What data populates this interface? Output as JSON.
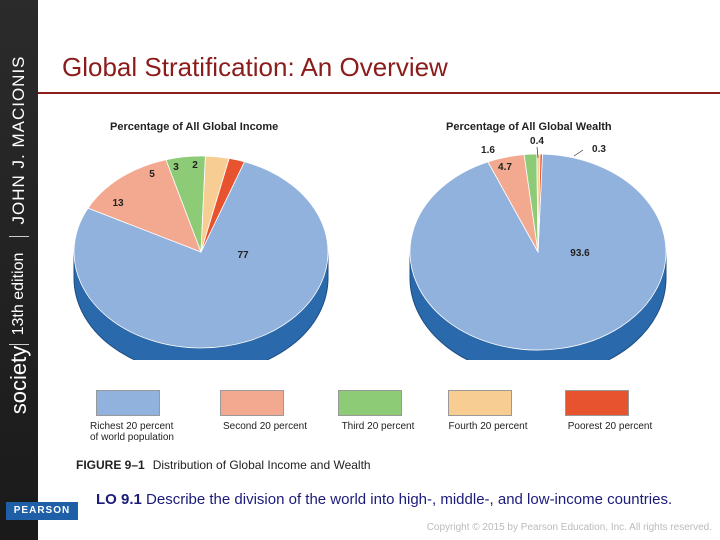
{
  "sidebar": {
    "author_title": "JOHN J. MACIONIS",
    "edition": "13th edition",
    "book": "society",
    "publisher": "PEARSON"
  },
  "slide": {
    "title": "Global Stratification: An Overview",
    "figure_number": "FIGURE 9–1",
    "figure_caption": "Distribution of Global Income and Wealth",
    "lo_number": "LO 9.1",
    "lo_text": "Describe the division of the world into high-, middle-, and low-income countries.",
    "copyright": "Copyright © 2015 by Pearson Education, Inc. All rights reserved."
  },
  "colors": {
    "brand": "#8b1c1c",
    "richest": "#92b2de",
    "second": "#f3a98f",
    "third": "#8ecb77",
    "fourth": "#f8cd93",
    "poorest": "#e8532f",
    "pie_side": "#2a69ac"
  },
  "legend": [
    {
      "label": "Richest 20 percent\nof world population",
      "color": "#92b2de"
    },
    {
      "label": "Second 20 percent",
      "color": "#f3a98f"
    },
    {
      "label": "Third 20 percent",
      "color": "#8ecb77"
    },
    {
      "label": "Fourth 20 percent",
      "color": "#f8cd93"
    },
    {
      "label": "Poorest 20 percent",
      "color": "#e8532f"
    }
  ],
  "chart_data": [
    {
      "type": "pie",
      "title": "Percentage of All Global Income",
      "categories": [
        "Richest 20 percent of world population",
        "Second 20 percent",
        "Third 20 percent",
        "Fourth 20 percent",
        "Poorest 20 percent"
      ],
      "values": [
        77,
        13,
        5,
        3,
        2
      ],
      "labels": [
        "77",
        "13",
        "5",
        "3",
        "2"
      ]
    },
    {
      "type": "pie",
      "title": "Percentage of All Global Wealth",
      "categories": [
        "Richest 20 percent of world population",
        "Second 20 percent",
        "Third 20 percent",
        "Fourth 20 percent",
        "Poorest 20 percent"
      ],
      "values": [
        93.6,
        4.7,
        1.6,
        0.4,
        0.3
      ],
      "labels": [
        "93.6",
        "4.7",
        "1.6",
        "0.4",
        "0.3"
      ]
    }
  ]
}
